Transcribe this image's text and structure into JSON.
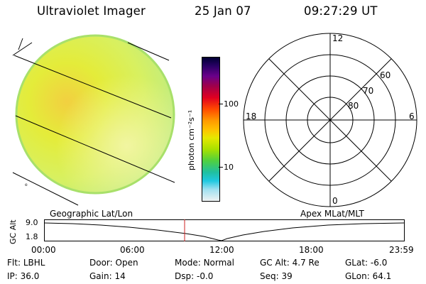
{
  "header": {
    "instrument": "Ultraviolet Imager",
    "date": "25 Jan 07",
    "time": "09:27:29 UT"
  },
  "colorbar": {
    "unit_label": "photon cm⁻²s⁻¹",
    "ticks": [
      "100",
      "10"
    ],
    "colors": [
      "#000033",
      "#2a0066",
      "#5a0090",
      "#800060",
      "#b00030",
      "#e00020",
      "#ff4a00",
      "#ff8a00",
      "#ffb800",
      "#e0e000",
      "#a0e000",
      "#40d040",
      "#20c0a0",
      "#20c8e0",
      "#a0e0f0",
      "#e8f0f0"
    ]
  },
  "polar_plot": {
    "mlt_labels": [
      "12",
      "18",
      "6",
      "0"
    ],
    "lat_labels": [
      "60",
      "70",
      "80"
    ]
  },
  "timeline": {
    "ylabel": "GC Alt",
    "left_caption": "Geographic Lat/Lon",
    "right_caption": "Apex MLat/MLT",
    "y_ticks": [
      "9.0",
      "1.8"
    ],
    "x_ticks": [
      "00:00",
      "06:00",
      "12:00",
      "18:00",
      "23:59"
    ],
    "current_marker_color": "#cc2222"
  },
  "status": {
    "row1": [
      {
        "label": "Flt:",
        "value": "LBHL"
      },
      {
        "label": "Door:",
        "value": "Open"
      },
      {
        "label": "Mode:",
        "value": "Normal"
      },
      {
        "label": "GC Alt:",
        "value": "4.7 Re"
      },
      {
        "label": "GLat:",
        "value": "-6.0"
      }
    ],
    "row2": [
      {
        "label": "IP:",
        "value": "36.0"
      },
      {
        "label": "Gain:",
        "value": "14"
      },
      {
        "label": "Dsp:",
        "value": "-0.0"
      },
      {
        "label": "Seq:",
        "value": "39"
      },
      {
        "label": "GLon:",
        "value": "64.1"
      }
    ]
  }
}
